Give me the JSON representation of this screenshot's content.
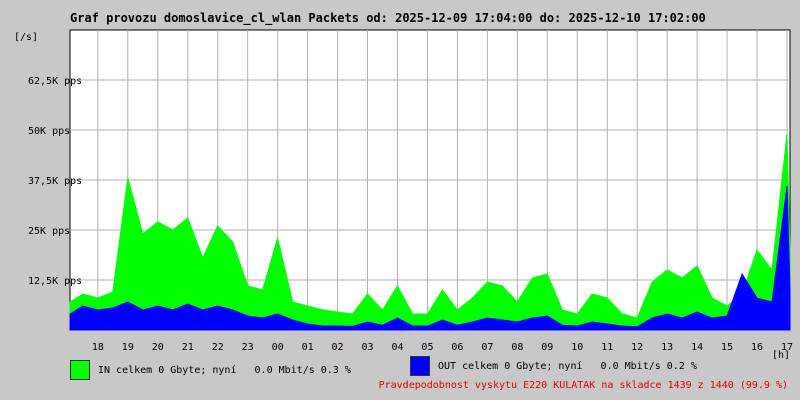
{
  "chart_data": {
    "type": "area",
    "title": "Graf provozu domoslavice_cl_wlan Packets od: 2025-12-09 17:04:00 do: 2025-12-10 17:02:00",
    "ylabel": "[/s]",
    "xlabel": "[h]",
    "ylim": [
      0,
      75000
    ],
    "yticks": [
      12500,
      25000,
      37500,
      50000,
      62500
    ],
    "ytick_labels": [
      "12,5K pps",
      "25K pps",
      "37,5K pps",
      "50K pps",
      "62,5K pps"
    ],
    "x_hours": [
      17.07,
      17.5,
      18,
      18.5,
      19,
      19.5,
      20,
      20.5,
      21,
      21.5,
      22,
      22.5,
      23,
      23.5,
      24,
      24.5,
      25,
      25.5,
      26,
      26.5,
      27,
      27.5,
      28,
      28.5,
      29,
      29.5,
      30,
      30.5,
      31,
      31.5,
      32,
      32.5,
      33,
      33.5,
      34,
      34.5,
      35,
      35.5,
      36,
      36.5,
      37,
      37.5,
      38,
      38.5,
      39,
      39.5,
      40,
      40.5,
      41,
      41.1
    ],
    "xticks": [
      18,
      19,
      20,
      21,
      22,
      23,
      24,
      25,
      26,
      27,
      28,
      29,
      30,
      31,
      32,
      33,
      34,
      35,
      36,
      37,
      38,
      39,
      40,
      41
    ],
    "xtick_labels": [
      "18",
      "19",
      "20",
      "21",
      "22",
      "23",
      "00",
      "01",
      "02",
      "03",
      "04",
      "05",
      "06",
      "07",
      "08",
      "09",
      "10",
      "11",
      "12",
      "13",
      "14",
      "15",
      "16",
      "17"
    ],
    "grid": true,
    "series": [
      {
        "name": "IN",
        "color": "#00ff00",
        "values": [
          7000,
          9000,
          8000,
          9500,
          38000,
          24000,
          27000,
          25000,
          28000,
          18000,
          26000,
          22000,
          11000,
          10000,
          23000,
          7000,
          6000,
          5000,
          4500,
          4000,
          9000,
          5000,
          11000,
          4000,
          4000,
          10000,
          5000,
          8000,
          12000,
          11000,
          7000,
          13000,
          14000,
          5000,
          4000,
          9000,
          8000,
          4000,
          3000,
          12000,
          15000,
          13000,
          16000,
          8000,
          6000,
          9000,
          20000,
          15000,
          49000,
          20000
        ]
      },
      {
        "name": "OUT",
        "color": "#0000ff",
        "values": [
          4000,
          6000,
          5000,
          5500,
          7000,
          5000,
          6000,
          5000,
          6500,
          5000,
          6000,
          5000,
          3500,
          3000,
          4000,
          2500,
          1500,
          1000,
          1000,
          900,
          2000,
          1200,
          3000,
          1000,
          1000,
          2500,
          1200,
          2000,
          3000,
          2500,
          2000,
          3000,
          3500,
          1200,
          1000,
          2000,
          1500,
          1000,
          800,
          3000,
          4000,
          3000,
          4500,
          3000,
          3500,
          14000,
          8000,
          7000,
          36000,
          10000
        ]
      }
    ]
  },
  "legend": {
    "in_text": "IN celkem 0 Gbyte; nyní   0.0 Mbit/s 0.3 %",
    "out_text": "OUT celkem 0 Gbyte; nyní   0.0 Mbit/s 0.2 %",
    "in_color": "#00ff00",
    "out_color": "#0000ff"
  },
  "note": "Pravdepodobnost vyskytu E220 KULATAK na skladce 1439 z 1440 (99.9 %)"
}
